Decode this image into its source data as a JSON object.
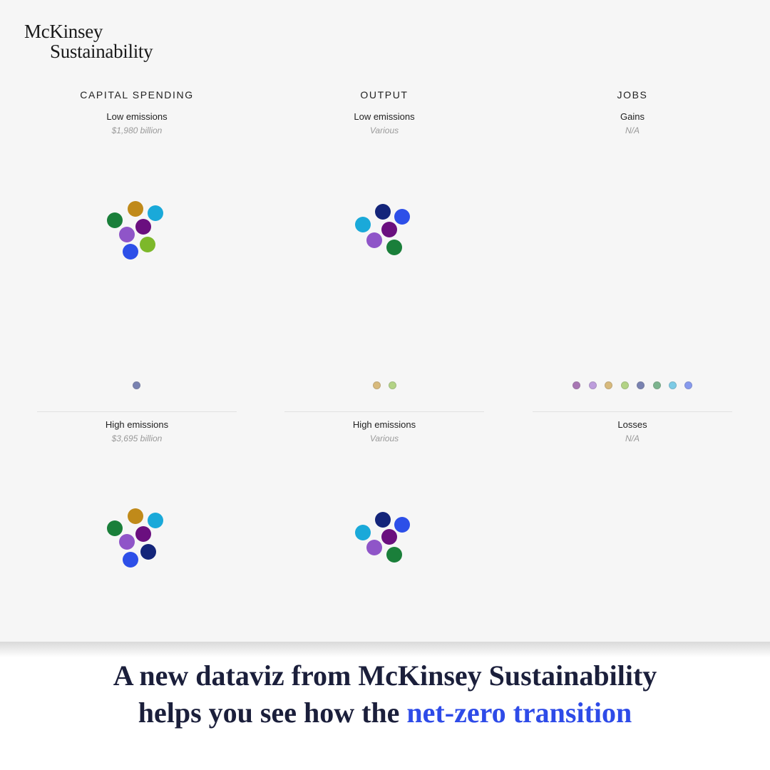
{
  "brand": {
    "line1": "McKinsey",
    "line2": "Sustainability"
  },
  "columns": [
    {
      "header": "CAPITAL SPENDING",
      "top_label": "Low emissions",
      "top_value": "$1,980 billion",
      "bottom_label": "High emissions",
      "bottom_value": "$3,695 billion"
    },
    {
      "header": "OUTPUT",
      "top_label": "Low emissions",
      "top_value": "Various",
      "bottom_label": "High emissions",
      "bottom_value": "Various"
    },
    {
      "header": "JOBS",
      "top_label": "Gains",
      "top_value": "N/A",
      "bottom_label": "Losses",
      "bottom_value": "N/A"
    }
  ],
  "colors": {
    "green": "#1a7f3a",
    "gold": "#c08a1a",
    "cyan": "#1aa9d9",
    "purple": "#6a0f7f",
    "violet": "#8f55c8",
    "blue": "#2d4fe8",
    "lime": "#7db82a",
    "navy": "#14257a",
    "caption_text": "#1b1f3b",
    "caption_highlight": "#2e4be8"
  },
  "caption": {
    "line1": "A new dataviz from McKinsey Sustainability",
    "line2_prefix": "helps you see how the ",
    "line2_highlight": "net-zero transition"
  }
}
